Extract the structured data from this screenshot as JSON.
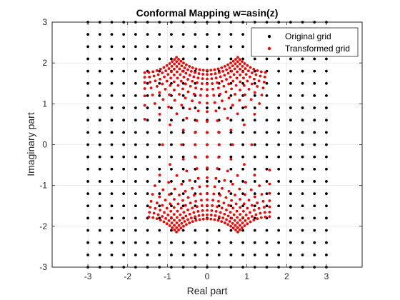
{
  "chart_data": {
    "type": "scatter",
    "title": "Conformal Mapping w=asin(z)",
    "xlabel": "Real part",
    "ylabel": "Imaginary part",
    "xlim": [
      -3.9,
      3.9
    ],
    "ylim": [
      -3,
      3
    ],
    "xticks": [
      -3,
      -2,
      -1,
      0,
      1,
      2,
      3
    ],
    "yticks": [
      -3,
      -2,
      -1,
      0,
      1,
      2,
      3
    ],
    "grid": true,
    "legend_position": "top-right",
    "grid_spec": {
      "min": -3,
      "max": 3,
      "step": 0.3
    },
    "series": [
      {
        "name": "Original grid",
        "color": "#000000",
        "marker": "dot",
        "rule": "all points of the grid"
      },
      {
        "name": "Transformed grid",
        "color": "#ff0000",
        "marker": "dot",
        "rule": "asin(z) for each grid point z"
      }
    ]
  }
}
